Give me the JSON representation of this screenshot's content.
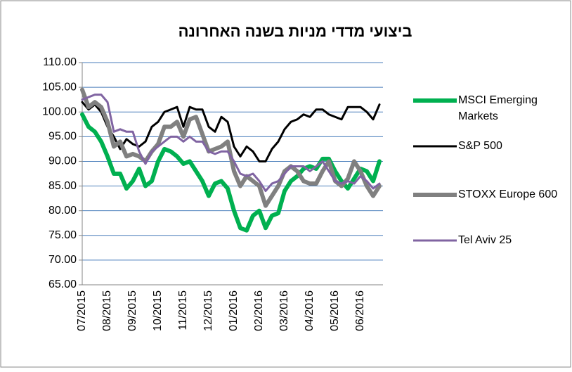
{
  "chart_data": {
    "type": "line",
    "title": "ביצועי מדדי מניות בשנה האחרונה",
    "categories": [
      "07/2015",
      null,
      null,
      null,
      "08/2015",
      null,
      null,
      null,
      "09/2015",
      null,
      null,
      null,
      "10/2015",
      null,
      null,
      null,
      "11/2015",
      null,
      null,
      null,
      "12/2015",
      null,
      null,
      null,
      "01/2016",
      null,
      null,
      null,
      "02/2016",
      null,
      null,
      null,
      "03/2016",
      null,
      null,
      null,
      "04/2016",
      null,
      null,
      null,
      "05/2016",
      null,
      null,
      null,
      "06/2016",
      null,
      null,
      null
    ],
    "series": [
      {
        "name": "MSCI Emerging Markets",
        "color": "#00b050",
        "values": [
          99.5,
          97,
          96,
          94,
          91,
          87.5,
          87.5,
          84.5,
          86,
          88.5,
          85,
          86,
          90,
          92.5,
          92,
          91,
          89.5,
          90,
          88,
          86,
          83,
          85.5,
          86,
          84.5,
          80,
          76.5,
          76,
          79,
          80,
          76.5,
          79,
          79.5,
          84,
          86,
          87,
          88.5,
          89,
          88.5,
          90.5,
          90.5,
          88,
          86,
          84.5,
          86.5,
          88.5,
          88,
          86,
          90
        ]
      },
      {
        "name": "S&P 500",
        "color": "#000000",
        "values": [
          102,
          100.5,
          101.5,
          100,
          97,
          95,
          92.5,
          94.5,
          93.5,
          93,
          94,
          97,
          98,
          100,
          100.5,
          101,
          97,
          101,
          100.5,
          100.5,
          97,
          96,
          99,
          98,
          93,
          91,
          93,
          92,
          90,
          90,
          92.5,
          94,
          96.5,
          98,
          98.5,
          99.5,
          99,
          100.5,
          100.5,
          99.5,
          99,
          98.5,
          101,
          101,
          101,
          100,
          98.5,
          101.5
        ]
      },
      {
        "name": "STOXX Europe 600",
        "color": "#808080",
        "values": [
          104.5,
          101,
          102,
          101,
          98,
          93,
          94,
          91,
          91.5,
          91,
          90,
          92,
          93.5,
          97,
          97,
          98,
          95,
          98.5,
          99,
          95.5,
          92,
          92.5,
          93,
          94,
          88,
          85,
          87,
          86,
          85,
          81,
          83,
          85,
          88,
          89,
          88,
          86,
          85.5,
          85.5,
          88,
          90,
          86,
          85,
          86.5,
          90,
          88,
          85,
          83,
          85
        ]
      },
      {
        "name": "Tel Aviv 25",
        "color": "#8064a2",
        "values": [
          102.5,
          103,
          103.5,
          103.5,
          102,
          96,
          96.5,
          96,
          96,
          92,
          89.5,
          92,
          93,
          94,
          95,
          95,
          94,
          95,
          94,
          94,
          92,
          91.5,
          92,
          92,
          90,
          87.5,
          87,
          87.5,
          86,
          84,
          85.5,
          86,
          87.5,
          89,
          89,
          89,
          88,
          89,
          90,
          88,
          86,
          85.5,
          86,
          85.5,
          87,
          86,
          84.5,
          85.5
        ]
      }
    ],
    "ylim": [
      65,
      110
    ],
    "yticks": [
      {
        "value": 65,
        "label": "65.00"
      },
      {
        "value": 70,
        "label": "70.00"
      },
      {
        "value": 75,
        "label": "75.00"
      },
      {
        "value": 80,
        "label": "80.00"
      },
      {
        "value": 85,
        "label": "85.00"
      },
      {
        "value": 90,
        "label": "90.00"
      },
      {
        "value": 95,
        "label": "95.00"
      },
      {
        "value": 100,
        "label": "100.00"
      },
      {
        "value": 105,
        "label": "105.00"
      },
      {
        "value": 110,
        "label": "110.00"
      }
    ],
    "grid": true
  }
}
